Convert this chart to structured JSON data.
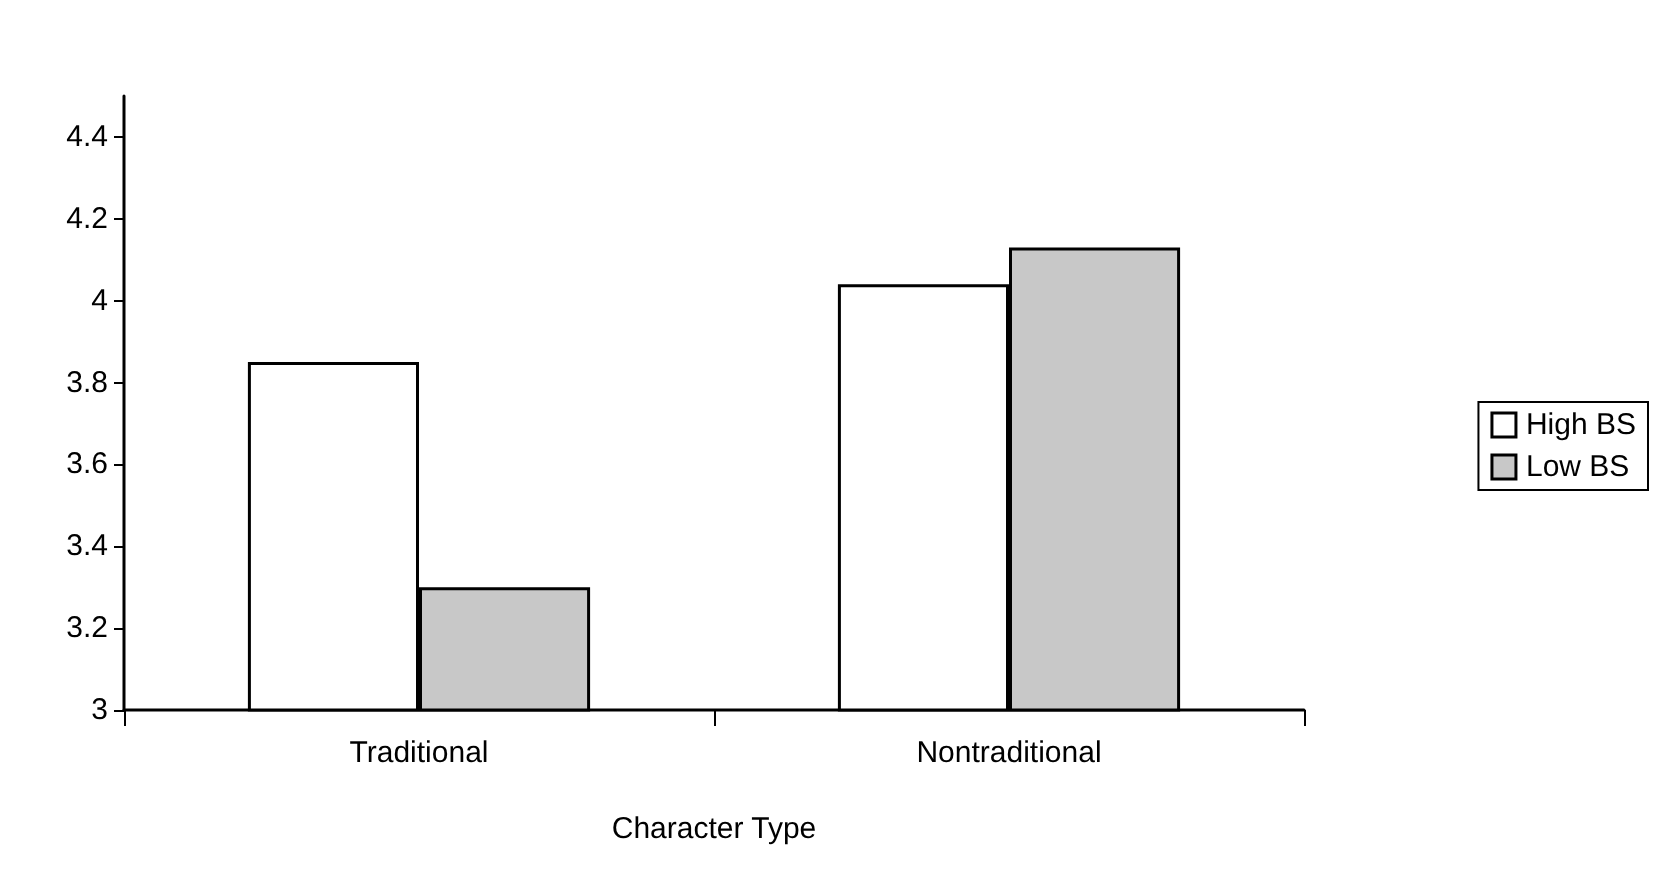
{
  "chart_data": {
    "type": "bar",
    "xlabel": "Character Type",
    "categories": [
      "Traditional",
      "Nontraditional"
    ],
    "series": [
      {
        "name": "High BS",
        "color": "#ffffff",
        "values": [
          3.85,
          4.04
        ]
      },
      {
        "name": "Low BS",
        "color": "#c8c8c8",
        "values": [
          3.3,
          4.13
        ]
      }
    ],
    "ylim": [
      3,
      4.5
    ],
    "yticks": [
      3,
      3.2,
      3.4,
      3.6,
      3.8,
      4,
      4.2,
      4.4
    ],
    "grid": false,
    "legend": "right"
  }
}
